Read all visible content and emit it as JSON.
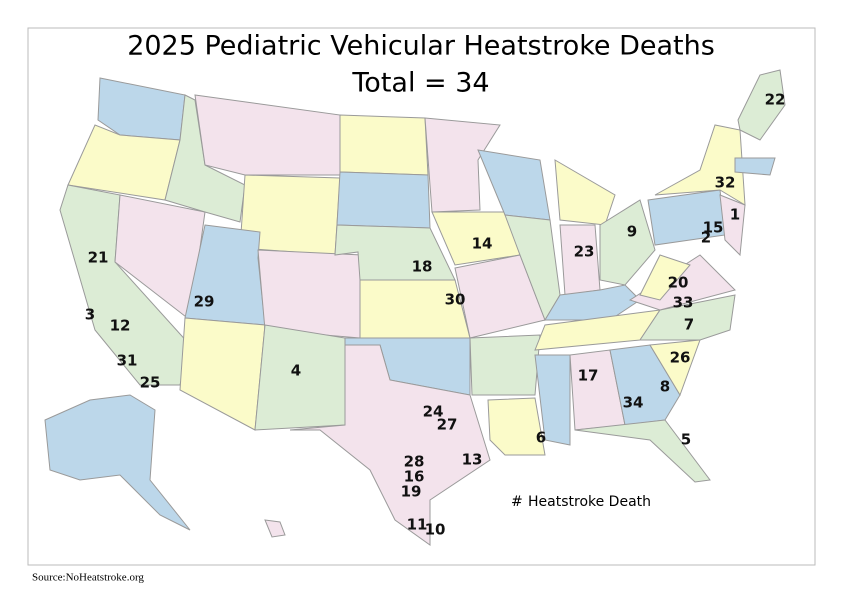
{
  "title": "2025 Pediatric Vehicular Heatstroke Deaths",
  "subtitle": "Total = 34",
  "state_labels": [
    22,
    32,
    1,
    15,
    2,
    9,
    23,
    14,
    18,
    21,
    29,
    30,
    20,
    33,
    7,
    3,
    12,
    31,
    25,
    4,
    26,
    17,
    8,
    34,
    24,
    27,
    6,
    5,
    13,
    28,
    16,
    19,
    11,
    10
  ],
  "legend": {
    "symbol": "#",
    "text": "Heatstroke Death"
  },
  "source": "Source:NoHeatstroke.org"
}
